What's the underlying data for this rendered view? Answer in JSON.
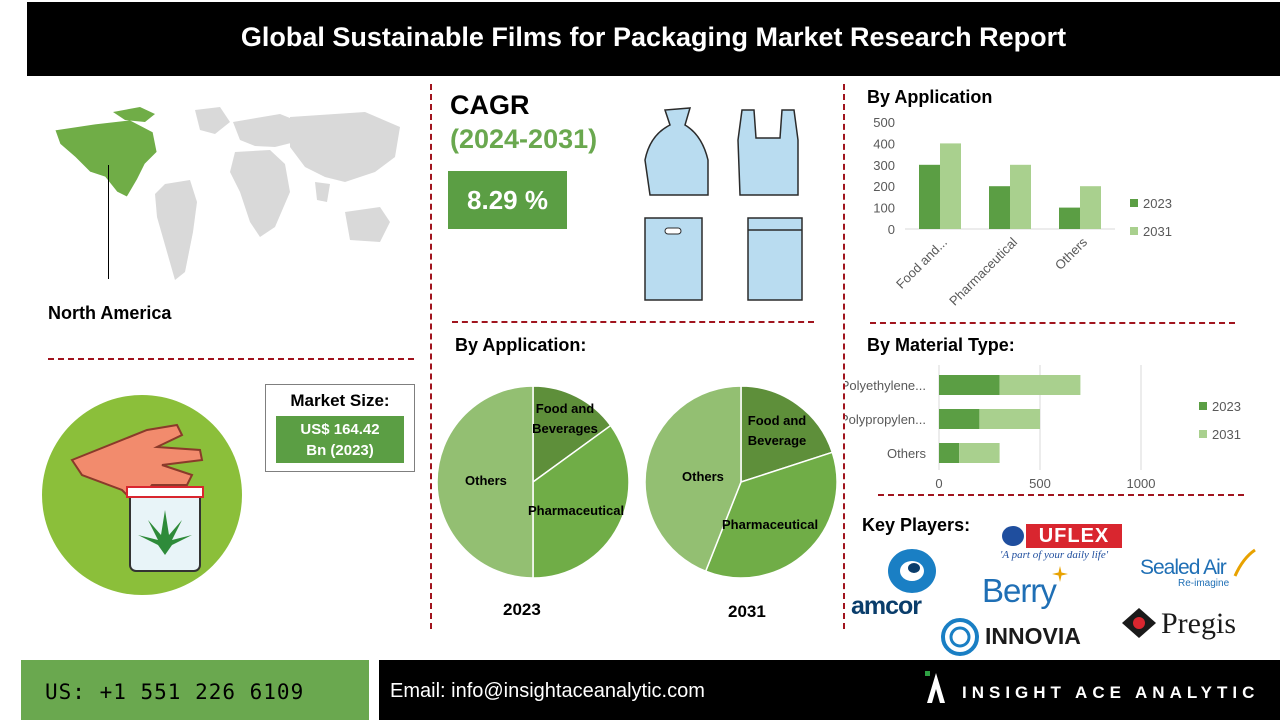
{
  "title": "Global Sustainable Films for Packaging Market  Research Report",
  "region": "North America",
  "cagr": {
    "title": "CAGR",
    "period": "(2024-2031)",
    "value": "8.29 %"
  },
  "market_size": {
    "label": "Market Size:",
    "value_line1": "US$ 164.42",
    "value_line2": "Bn (2023)"
  },
  "pie_section": {
    "title": "By Application:",
    "pies": [
      {
        "year": "2023",
        "labels": {
          "food": "Food and\nBeverages",
          "pharma": "Pharmaceutical",
          "others": "Others"
        }
      },
      {
        "year": "2031",
        "labels": {
          "food": "Food and\nBeverage",
          "pharma": "Pharmaceutical",
          "others": "Others"
        }
      }
    ]
  },
  "app_chart_title": "By Application",
  "material_chart_title": "By Material Type:",
  "key_players_title": "Key Players:",
  "logos": {
    "uflex": "UFLEX",
    "uflex_tag": "'A part of your daily life'",
    "sealed": "Sealed Air",
    "sealed_tag": "Re-imagine",
    "amcor": "amcor",
    "berry": "Berry",
    "innovia": "INNOVIA",
    "pregis": "Pregis"
  },
  "footer": {
    "phone": "US: +1 551 226 6109",
    "email": "Email: info@insightaceanalytic.com",
    "brand": "INSIGHT ACE ANALYTIC"
  },
  "colors": {
    "dark_green": "#5b9e44",
    "light_green": "#a9d08e",
    "pie_dark": "#5e8f3a",
    "pie_mid": "#70ad47",
    "pie_light": "#93bf72",
    "dashed": "#a0141e"
  },
  "chart_data": [
    {
      "type": "bar",
      "title": "By Application",
      "categories": [
        "Food and...",
        "Pharmaceutical",
        "Others"
      ],
      "series": [
        {
          "name": "2023",
          "values": [
            300,
            200,
            100
          ]
        },
        {
          "name": "2031",
          "values": [
            400,
            300,
            200
          ]
        }
      ],
      "ylim": [
        0,
        500
      ],
      "yticks": [
        0,
        100,
        200,
        300,
        400,
        500
      ],
      "legend": "right",
      "grid": false
    },
    {
      "type": "bar",
      "orientation": "horizontal",
      "stacked": true,
      "title": "By Material Type:",
      "categories": [
        "Polyethylene...",
        "Polypropylen...",
        "Others"
      ],
      "series": [
        {
          "name": "2023",
          "values": [
            300,
            200,
            100
          ]
        },
        {
          "name": "2031",
          "values": [
            400,
            300,
            200
          ]
        }
      ],
      "xlim": [
        0,
        1000
      ],
      "xticks": [
        0,
        500,
        1000
      ],
      "legend": "right",
      "grid": true
    },
    {
      "type": "pie",
      "year": "2023",
      "slices": [
        {
          "label": "Food and Beverages",
          "value": 15
        },
        {
          "label": "Pharmaceutical",
          "value": 35
        },
        {
          "label": "Others",
          "value": 50
        }
      ]
    },
    {
      "type": "pie",
      "year": "2031",
      "slices": [
        {
          "label": "Food and Beverage",
          "value": 20
        },
        {
          "label": "Pharmaceutical",
          "value": 36
        },
        {
          "label": "Others",
          "value": 44
        }
      ]
    }
  ]
}
